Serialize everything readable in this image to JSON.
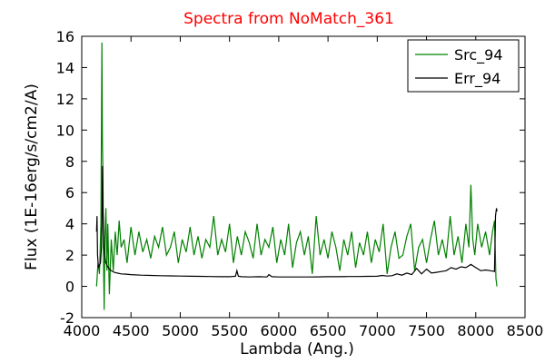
{
  "chart_data": {
    "type": "line",
    "title": "Spectra from NoMatch_361",
    "title_color": "#ff0000",
    "xlabel": "Lambda (Ang.)",
    "ylabel": "Flux (1E-16erg/s/cm2/A)",
    "xlim": [
      4000,
      8500
    ],
    "ylim": [
      -2,
      16
    ],
    "x_ticks": [
      4000,
      4500,
      5000,
      5500,
      6000,
      6500,
      7000,
      7500,
      8000,
      8500
    ],
    "y_ticks": [
      -2,
      0,
      2,
      4,
      6,
      8,
      10,
      12,
      14,
      16
    ],
    "legend_position": "top-right",
    "grid": false,
    "series": [
      {
        "name": "Src_94",
        "color": "#008000",
        "x": [
          4150,
          4165,
          4180,
          4195,
          4205,
          4210,
          4215,
          4220,
          4228,
          4235,
          4245,
          4255,
          4265,
          4280,
          4300,
          4320,
          4340,
          4360,
          4380,
          4400,
          4430,
          4460,
          4500,
          4540,
          4580,
          4620,
          4660,
          4700,
          4740,
          4780,
          4820,
          4860,
          4900,
          4940,
          4980,
          5020,
          5060,
          5100,
          5140,
          5180,
          5220,
          5260,
          5300,
          5340,
          5380,
          5420,
          5460,
          5500,
          5540,
          5580,
          5620,
          5660,
          5700,
          5740,
          5780,
          5820,
          5860,
          5900,
          5940,
          5980,
          6020,
          6060,
          6100,
          6140,
          6180,
          6220,
          6260,
          6300,
          6340,
          6380,
          6420,
          6460,
          6500,
          6540,
          6580,
          6620,
          6660,
          6700,
          6740,
          6780,
          6820,
          6860,
          6900,
          6940,
          6980,
          7020,
          7060,
          7100,
          7140,
          7180,
          7220,
          7260,
          7300,
          7340,
          7380,
          7420,
          7460,
          7500,
          7540,
          7580,
          7620,
          7660,
          7700,
          7740,
          7780,
          7820,
          7860,
          7900,
          7930,
          7950,
          7970,
          7990,
          8020,
          8060,
          8100,
          8140,
          8170,
          8190,
          8205,
          8215
        ],
        "values": [
          0.0,
          1.5,
          0.8,
          4.0,
          15.6,
          9.0,
          7.5,
          2.0,
          -1.5,
          3.0,
          5.0,
          1.0,
          4.0,
          -0.5,
          3.0,
          1.0,
          3.5,
          2.0,
          4.2,
          2.5,
          3.0,
          1.5,
          3.8,
          2.0,
          3.5,
          2.2,
          3.0,
          1.8,
          3.2,
          2.5,
          3.8,
          2.0,
          2.5,
          3.5,
          1.5,
          3.0,
          2.2,
          3.8,
          2.0,
          3.2,
          1.8,
          3.0,
          2.5,
          4.5,
          2.0,
          3.0,
          2.2,
          4.0,
          1.5,
          3.2,
          2.0,
          3.5,
          2.8,
          1.8,
          4.0,
          2.0,
          3.0,
          2.5,
          3.8,
          1.5,
          3.0,
          2.0,
          4.0,
          1.2,
          2.8,
          3.5,
          2.0,
          3.2,
          0.8,
          4.5,
          2.0,
          3.0,
          1.8,
          3.5,
          2.5,
          1.0,
          3.0,
          2.0,
          3.5,
          1.2,
          2.8,
          2.0,
          3.5,
          1.5,
          3.0,
          2.2,
          4.0,
          0.8,
          2.5,
          3.5,
          1.8,
          2.0,
          3.2,
          4.0,
          1.0,
          2.5,
          3.0,
          1.5,
          3.0,
          4.2,
          2.0,
          3.0,
          1.8,
          4.5,
          2.0,
          3.2,
          1.5,
          4.0,
          2.5,
          6.5,
          3.0,
          2.0,
          4.0,
          2.5,
          3.5,
          2.0,
          3.5,
          4.2,
          0.5,
          0.0
        ]
      },
      {
        "name": "Err_94",
        "color": "#000000",
        "x": [
          4150,
          4155,
          4160,
          4170,
          4190,
          4200,
          4205,
          4210,
          4215,
          4225,
          4240,
          4260,
          4280,
          4300,
          4330,
          4360,
          4400,
          4450,
          4500,
          4600,
          4700,
          4800,
          4900,
          5000,
          5100,
          5200,
          5300,
          5400,
          5500,
          5560,
          5575,
          5590,
          5620,
          5700,
          5800,
          5880,
          5900,
          5930,
          6000,
          6100,
          6200,
          6300,
          6400,
          6500,
          6600,
          6700,
          6800,
          6900,
          7000,
          7050,
          7100,
          7150,
          7200,
          7250,
          7300,
          7350,
          7400,
          7450,
          7500,
          7550,
          7600,
          7650,
          7700,
          7750,
          7800,
          7850,
          7900,
          7950,
          8000,
          8050,
          8100,
          8150,
          8190,
          8200,
          8210,
          8215
        ],
        "values": [
          3.5,
          4.5,
          2.0,
          1.2,
          1.5,
          2.5,
          4.0,
          7.7,
          5.0,
          2.5,
          1.6,
          1.3,
          1.1,
          1.0,
          0.9,
          0.85,
          0.8,
          0.78,
          0.75,
          0.72,
          0.7,
          0.68,
          0.67,
          0.66,
          0.65,
          0.64,
          0.63,
          0.62,
          0.62,
          0.65,
          1.0,
          0.65,
          0.62,
          0.6,
          0.62,
          0.6,
          0.75,
          0.62,
          0.6,
          0.6,
          0.6,
          0.6,
          0.61,
          0.62,
          0.62,
          0.63,
          0.63,
          0.64,
          0.65,
          0.7,
          0.66,
          0.68,
          0.8,
          0.72,
          0.85,
          0.75,
          1.15,
          0.8,
          1.1,
          0.85,
          0.9,
          0.95,
          1.0,
          1.2,
          1.1,
          1.25,
          1.2,
          1.4,
          1.2,
          1.0,
          1.05,
          1.0,
          0.95,
          4.5,
          5.0,
          4.8
        ]
      }
    ]
  }
}
